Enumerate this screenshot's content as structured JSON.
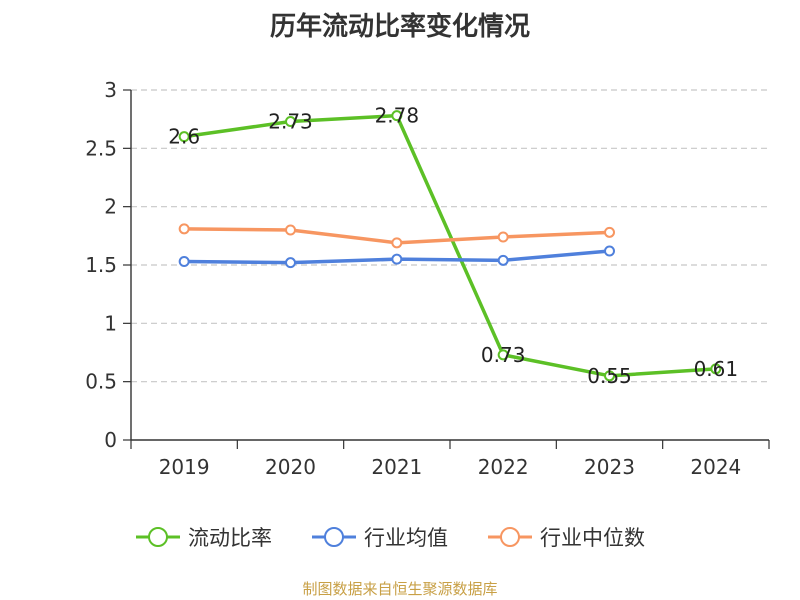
{
  "chart_data": {
    "type": "line",
    "title": "历年流动比率变化情况",
    "categories": [
      "2019",
      "2020",
      "2021",
      "2022",
      "2023",
      "2024"
    ],
    "ylim": [
      0,
      3
    ],
    "yticks": [
      "0",
      "0.5",
      "1",
      "1.5",
      "2",
      "2.5",
      "3"
    ],
    "grid": true,
    "legend_position": "bottom",
    "series": [
      {
        "name": "流动比率",
        "color": "#5cc026",
        "values": [
          2.6,
          2.73,
          2.78,
          0.73,
          0.55,
          0.61
        ],
        "labels": [
          "2.6",
          "2.73",
          "2.78",
          "0.73",
          "0.55",
          "0.61"
        ]
      },
      {
        "name": "行业均值",
        "color": "#4f80dc",
        "values": [
          1.53,
          1.52,
          1.55,
          1.54,
          1.62,
          null
        ]
      },
      {
        "name": "行业中位数",
        "color": "#f79661",
        "values": [
          1.81,
          1.8,
          1.69,
          1.74,
          1.78,
          null
        ]
      }
    ]
  },
  "footer": {
    "source": "制图数据来自恒生聚源数据库"
  }
}
